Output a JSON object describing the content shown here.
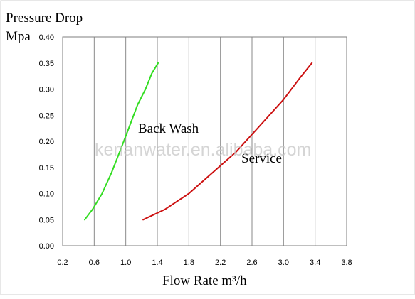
{
  "chart_data": {
    "type": "line",
    "title_line1": "Pressure Drop",
    "ylabel": "Mpa",
    "xlabel": "Flow Rate m³/h",
    "ylim": [
      0,
      0.4
    ],
    "yticks": [
      "0.00",
      "0.05",
      "0.10",
      "0.15",
      "0.20",
      "0.25",
      "0.30",
      "0.35",
      "0.40"
    ],
    "xlim": [
      0.2,
      3.8
    ],
    "xticks": [
      "0.2",
      "0.6",
      "1.0",
      "1.4",
      "1.8",
      "2.2",
      "2.6",
      "3.0",
      "3.4",
      "3.8"
    ],
    "grid": true,
    "series": [
      {
        "name": "Back Wash",
        "color": "#33dd22",
        "points": [
          [
            0.48,
            0.05
          ],
          [
            0.58,
            0.07
          ],
          [
            0.7,
            0.1
          ],
          [
            0.82,
            0.14
          ],
          [
            0.95,
            0.19
          ],
          [
            1.05,
            0.23
          ],
          [
            1.15,
            0.27
          ],
          [
            1.25,
            0.3
          ],
          [
            1.33,
            0.33
          ],
          [
            1.41,
            0.35
          ]
        ]
      },
      {
        "name": "Service",
        "color": "#cc1111",
        "points": [
          [
            1.22,
            0.05
          ],
          [
            1.5,
            0.07
          ],
          [
            1.8,
            0.1
          ],
          [
            2.1,
            0.14
          ],
          [
            2.4,
            0.18
          ],
          [
            2.7,
            0.23
          ],
          [
            3.0,
            0.28
          ],
          [
            3.2,
            0.32
          ],
          [
            3.36,
            0.35
          ]
        ]
      }
    ],
    "annotations": [
      "Back Wash",
      "Service"
    ],
    "watermark": "kenanwater.en.alibaba.com"
  }
}
